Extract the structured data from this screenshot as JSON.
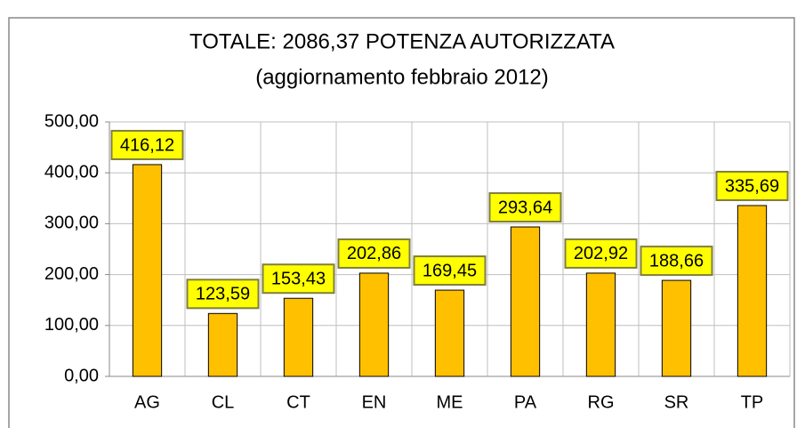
{
  "chart_data": {
    "type": "bar",
    "title": "TOTALE: 2086,37 POTENZA AUTORIZZATA",
    "subtitle": "(aggiornamento febbraio 2012)",
    "categories": [
      "AG",
      "CL",
      "CT",
      "EN",
      "ME",
      "PA",
      "RG",
      "SR",
      "TP"
    ],
    "values": [
      416.12,
      123.59,
      153.43,
      202.86,
      169.45,
      293.64,
      202.92,
      188.66,
      335.69
    ],
    "value_labels": [
      "416,12",
      "123,59",
      "153,43",
      "202,86",
      "169,45",
      "293,64",
      "202,92",
      "188,66",
      "335,69"
    ],
    "color": "#ffc000",
    "label_color": "#ffff00",
    "ylim": [
      0,
      500
    ],
    "yticks": [
      {
        "value": 0,
        "label": "0,00"
      },
      {
        "value": 100,
        "label": "100,00"
      },
      {
        "value": 200,
        "label": "200,00"
      },
      {
        "value": 300,
        "label": "300,00"
      },
      {
        "value": 400,
        "label": "400,00"
      },
      {
        "value": 500,
        "label": "500,00"
      }
    ],
    "grid": true
  }
}
